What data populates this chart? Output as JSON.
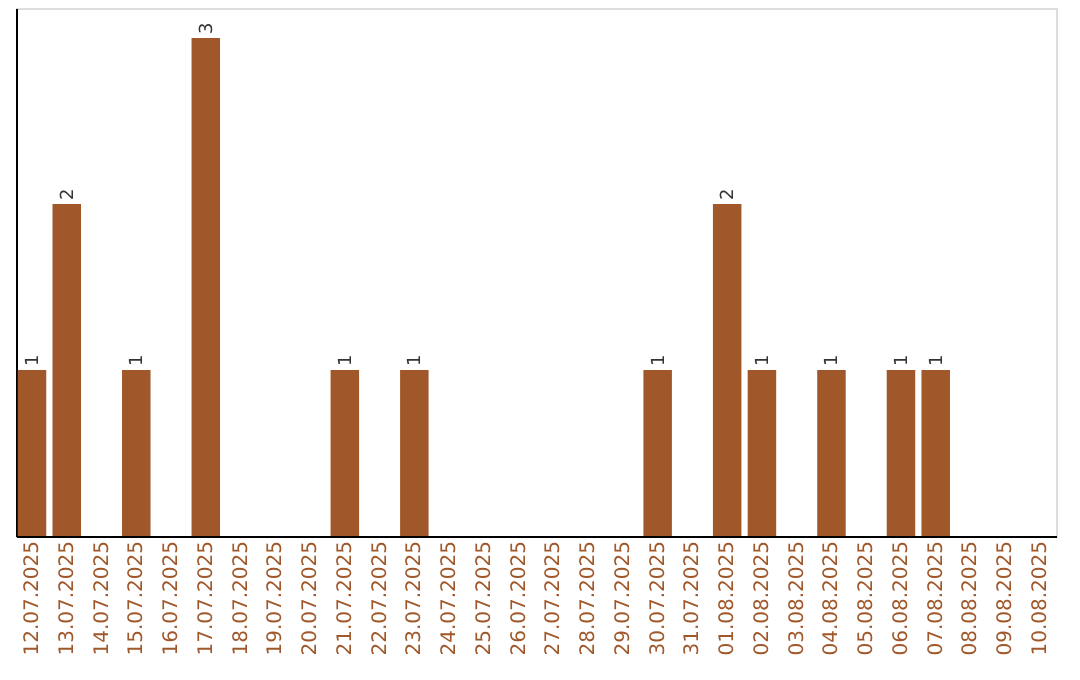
{
  "chart_data": {
    "type": "bar",
    "categories": [
      "12.07.2025",
      "13.07.2025",
      "14.07.2025",
      "15.07.2025",
      "16.07.2025",
      "17.07.2025",
      "18.07.2025",
      "19.07.2025",
      "20.07.2025",
      "21.07.2025",
      "22.07.2025",
      "23.07.2025",
      "24.07.2025",
      "25.07.2025",
      "26.07.2025",
      "27.07.2025",
      "28.07.2025",
      "29.07.2025",
      "30.07.2025",
      "31.07.2025",
      "01.08.2025",
      "02.08.2025",
      "03.08.2025",
      "04.08.2025",
      "05.08.2025",
      "06.08.2025",
      "07.08.2025",
      "08.08.2025",
      "09.08.2025",
      "10.08.2025"
    ],
    "values": [
      1,
      2,
      0,
      1,
      0,
      3,
      0,
      0,
      0,
      1,
      0,
      1,
      0,
      0,
      0,
      0,
      0,
      0,
      1,
      0,
      2,
      1,
      0,
      1,
      0,
      1,
      1,
      0,
      0,
      0
    ],
    "value_labels": [
      "1",
      "2",
      null,
      "1",
      null,
      "3",
      null,
      null,
      null,
      "1",
      null,
      "1",
      null,
      null,
      null,
      null,
      null,
      null,
      "1",
      null,
      "2",
      "1",
      null,
      "1",
      null,
      "1",
      "1",
      null,
      null,
      null
    ],
    "color": "#a0582a",
    "grid": false
  }
}
